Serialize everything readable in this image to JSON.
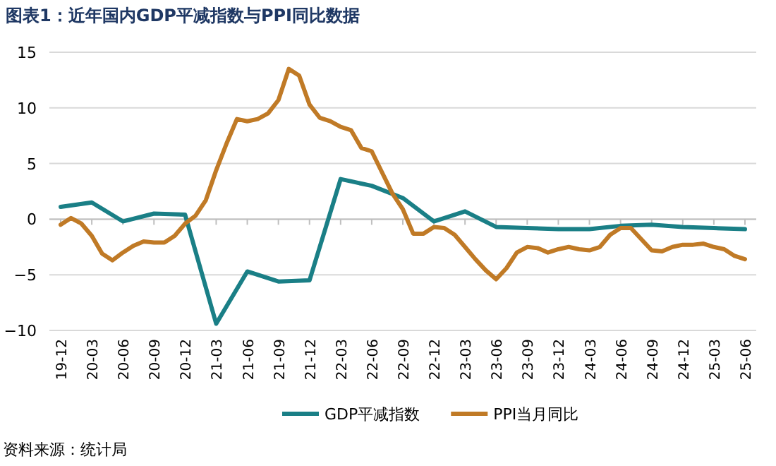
{
  "chart_data": {
    "type": "line",
    "title": "图表1：近年国内GDP平减指数与PPI同比数据",
    "categories": [
      "19-12",
      null,
      null,
      "20-03",
      null,
      null,
      "20-06",
      null,
      null,
      "20-09",
      null,
      null,
      "20-12",
      null,
      null,
      "21-03",
      null,
      null,
      "21-06",
      null,
      null,
      "21-09",
      null,
      null,
      "21-12",
      null,
      null,
      "22-03",
      null,
      null,
      "22-06",
      null,
      null,
      "22-09",
      null,
      null,
      "22-12",
      null,
      null,
      "23-03",
      null,
      null,
      "23-06",
      null,
      null,
      "23-09",
      null,
      null,
      "23-12",
      null,
      null,
      "24-03",
      null,
      null,
      "24-06",
      null,
      null,
      "24-09",
      null,
      null,
      "24-12",
      null,
      null,
      "25-03",
      null,
      null,
      "25-06"
    ],
    "series": [
      {
        "name": "GDP平减指数",
        "color": "#1a7f86",
        "x": [
          "19-12",
          "20-03",
          "20-06",
          "20-09",
          "20-12",
          "21-03",
          "21-06",
          "21-09",
          "21-12",
          "22-03",
          "22-06",
          "22-09",
          "22-12",
          "23-03",
          "23-06",
          "23-09",
          "23-12",
          "24-03",
          "24-06",
          "24-09",
          "24-12",
          "25-03",
          "25-06"
        ],
        "values": [
          1.1,
          1.5,
          -0.2,
          0.5,
          0.4,
          -9.4,
          -4.7,
          -5.6,
          -5.5,
          3.6,
          3.0,
          1.9,
          -0.2,
          0.7,
          -0.7,
          -0.8,
          -0.9,
          -0.9,
          -0.6,
          -0.5,
          -0.7,
          -0.8,
          -0.9
        ]
      },
      {
        "name": "PPI当月同比",
        "color": "#c07a26",
        "values": [
          -0.5,
          0.1,
          -0.4,
          -1.5,
          -3.1,
          -3.7,
          -3.0,
          -2.4,
          -2.0,
          -2.1,
          -2.1,
          -1.5,
          -0.4,
          0.3,
          1.7,
          4.4,
          6.8,
          9.0,
          8.8,
          9.0,
          9.5,
          10.7,
          13.5,
          12.9,
          10.3,
          9.1,
          8.8,
          8.3,
          8.0,
          6.4,
          6.1,
          4.2,
          2.3,
          0.9,
          -1.3,
          -1.3,
          -0.7,
          -0.8,
          -1.4,
          -2.5,
          -3.6,
          -4.6,
          -5.4,
          -4.4,
          -3.0,
          -2.5,
          -2.6,
          -3.0,
          -2.7,
          -2.5,
          -2.7,
          -2.8,
          -2.5,
          -1.4,
          -0.8,
          -0.8,
          -1.8,
          -2.8,
          -2.9,
          -2.5,
          -2.3,
          -2.3,
          -2.2,
          -2.5,
          -2.7,
          -3.3,
          -3.6
        ]
      }
    ],
    "ylim": [
      -10,
      15
    ],
    "yticks": [
      -10,
      -5,
      0,
      5,
      10,
      15
    ],
    "grid": "y",
    "legend": "bottom",
    "annotations": [
      "资料来源：统计局"
    ]
  }
}
